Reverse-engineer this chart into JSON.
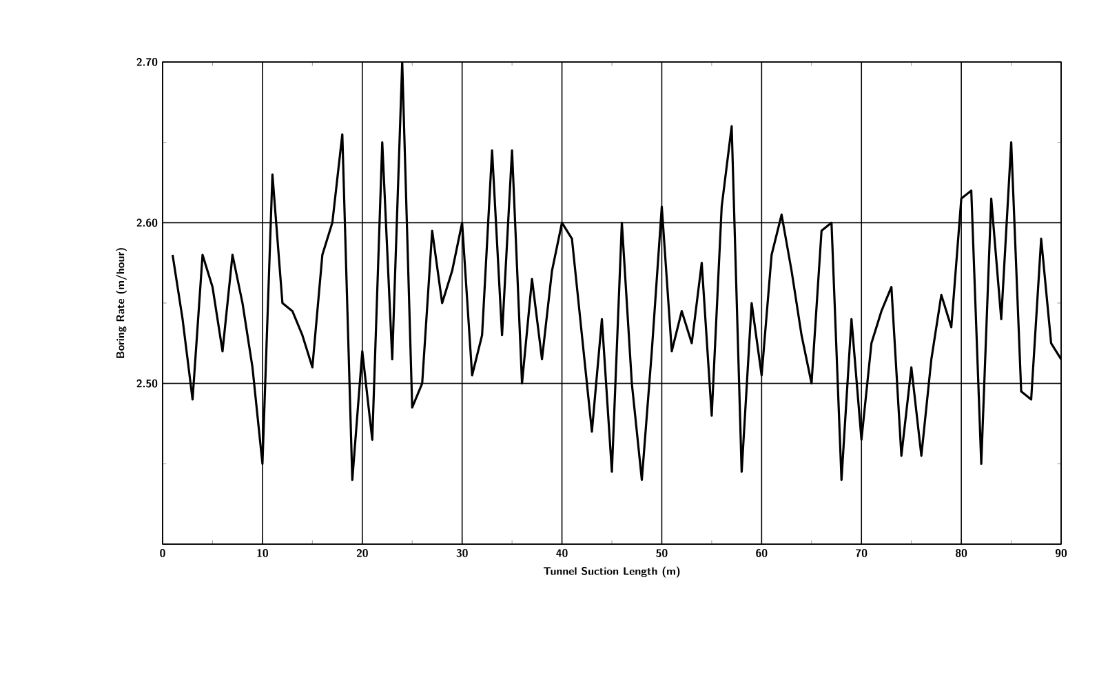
{
  "chart_data": {
    "type": "line",
    "xlabel": "Tunnel Suction Length (m)",
    "ylabel": "Boring Rate (m/hour)",
    "x": [
      1,
      2,
      3,
      4,
      5,
      6,
      7,
      8,
      9,
      10,
      11,
      12,
      13,
      14,
      15,
      16,
      17,
      18,
      19,
      20,
      21,
      22,
      23,
      24,
      25,
      26,
      27,
      28,
      29,
      30,
      31,
      32,
      33,
      34,
      35,
      36,
      37,
      38,
      39,
      40,
      41,
      42,
      43,
      44,
      45,
      46,
      47,
      48,
      49,
      50,
      51,
      52,
      53,
      54,
      55,
      56,
      57,
      58,
      59,
      60,
      61,
      62,
      63,
      64,
      65,
      66,
      67,
      68,
      69,
      70,
      71,
      72,
      73,
      74,
      75,
      76,
      77,
      78,
      79,
      80,
      81,
      82,
      83,
      84,
      85,
      86,
      87,
      88,
      89,
      90
    ],
    "series": [
      {
        "color": "#000000",
        "values": [
          2.58,
          2.54,
          2.49,
          2.58,
          2.56,
          2.52,
          2.58,
          2.55,
          2.51,
          2.45,
          2.63,
          2.55,
          2.545,
          2.53,
          2.51,
          2.58,
          2.6,
          2.655,
          2.44,
          2.52,
          2.465,
          2.65,
          2.515,
          2.7,
          2.485,
          2.5,
          2.595,
          2.55,
          2.57,
          2.6,
          2.505,
          2.53,
          2.645,
          2.53,
          2.645,
          2.5,
          2.565,
          2.515,
          2.57,
          2.6,
          2.59,
          2.53,
          2.47,
          2.54,
          2.445,
          2.6,
          2.5,
          2.44,
          2.52,
          2.61,
          2.52,
          2.545,
          2.525,
          2.575,
          2.48,
          2.61,
          2.66,
          2.445,
          2.55,
          2.505,
          2.58,
          2.605,
          2.57,
          2.53,
          2.5,
          2.595,
          2.6,
          2.44,
          2.54,
          2.465,
          2.525,
          2.545,
          2.56,
          2.455,
          2.51,
          2.455,
          2.515,
          2.555,
          2.535,
          2.615,
          2.62,
          2.45,
          2.615,
          2.54,
          2.65,
          2.495,
          2.49,
          2.59,
          2.525,
          2.515
        ]
      }
    ],
    "xlim": [
      0,
      90
    ],
    "xticks": [
      0,
      10,
      20,
      30,
      40,
      50,
      60,
      70,
      80,
      90
    ],
    "ylim": [
      2.4,
      2.7
    ],
    "yticks": [
      {
        "value": 2.4,
        "label": null
      },
      {
        "value": 2.5,
        "label": "2.50"
      },
      {
        "value": 2.6,
        "label": "2.60"
      },
      {
        "value": 2.7,
        "label": "2.70"
      }
    ],
    "grid": true,
    "marker": "none",
    "line_style": "solid"
  }
}
